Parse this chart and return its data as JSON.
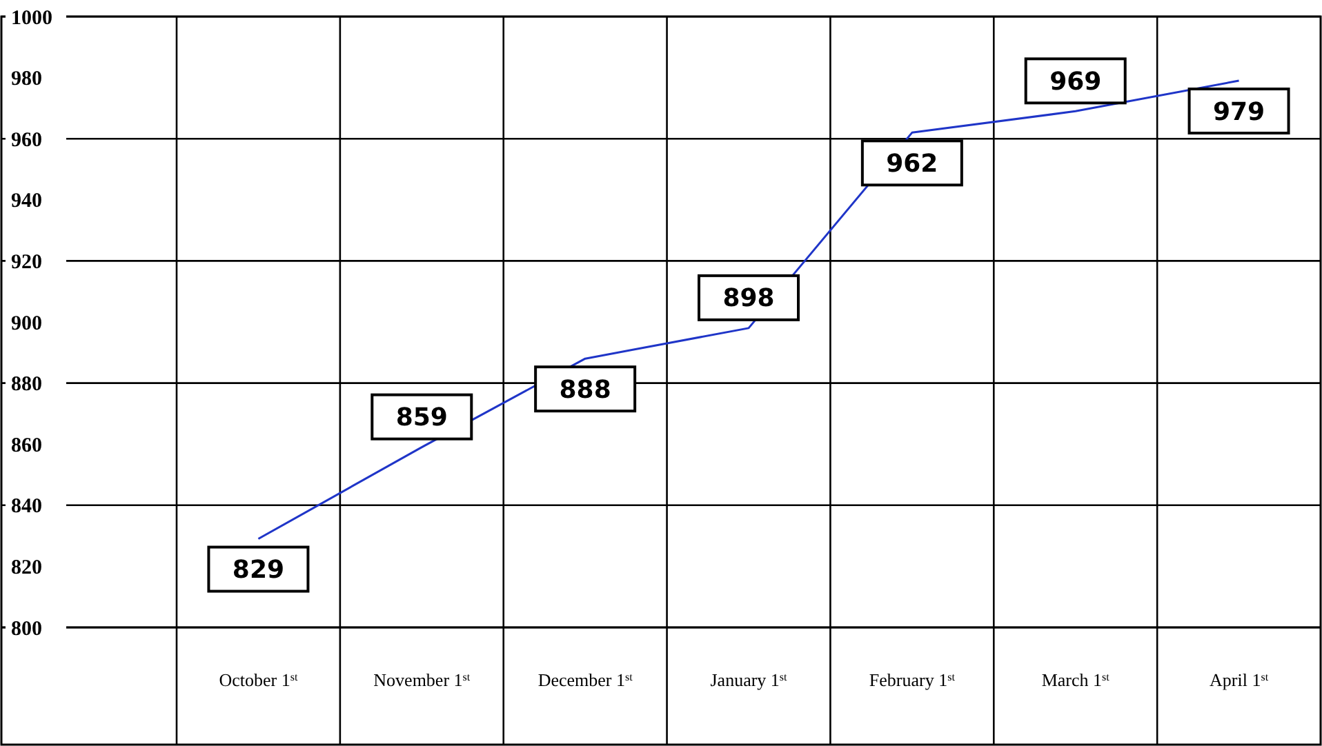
{
  "chart_data": {
    "type": "line",
    "categories": [
      "October 1$^{st}$",
      "November 1$^{st}$",
      "December 1$^{st}$",
      "January 1$^{st}$",
      "February 1$^{st}$",
      "March 1$^{st}$",
      "April 1$^{st}$"
    ],
    "series": [
      {
        "color": "#1f35c8",
        "values": [
          829,
          859,
          888,
          898,
          962,
          969,
          979
        ]
      }
    ],
    "ylim": [
      800,
      1000
    ],
    "yticks": [
      800,
      820,
      840,
      860,
      880,
      900,
      920,
      940,
      960,
      980,
      1000
    ],
    "grid": true,
    "data_labels": true,
    "marker": "none",
    "line_style": "solid"
  }
}
